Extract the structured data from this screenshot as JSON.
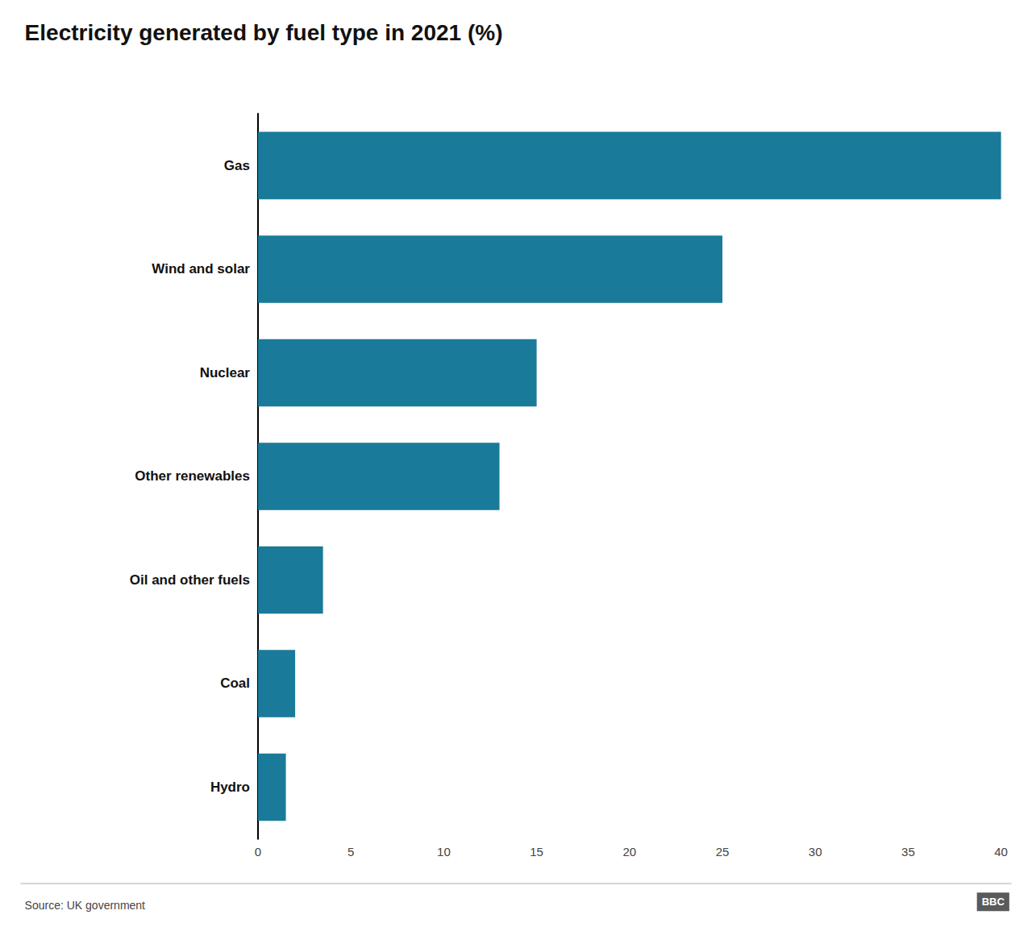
{
  "chart_data": {
    "type": "bar",
    "orientation": "horizontal",
    "title": "Electricity generated by fuel type in 2021 (%)",
    "categories": [
      "Gas",
      "Wind and solar",
      "Nuclear",
      "Other renewables",
      "Oil and other fuels",
      "Coal",
      "Hydro"
    ],
    "values": [
      40,
      25,
      15,
      13,
      3.5,
      2,
      1.5
    ],
    "color": "#1a7a9a",
    "xlim": [
      0,
      40
    ],
    "xticks": [
      0,
      5,
      10,
      15,
      20,
      25,
      30,
      35,
      40
    ],
    "grid": false,
    "annotations": [
      "Source: UK government",
      "BBC"
    ]
  }
}
